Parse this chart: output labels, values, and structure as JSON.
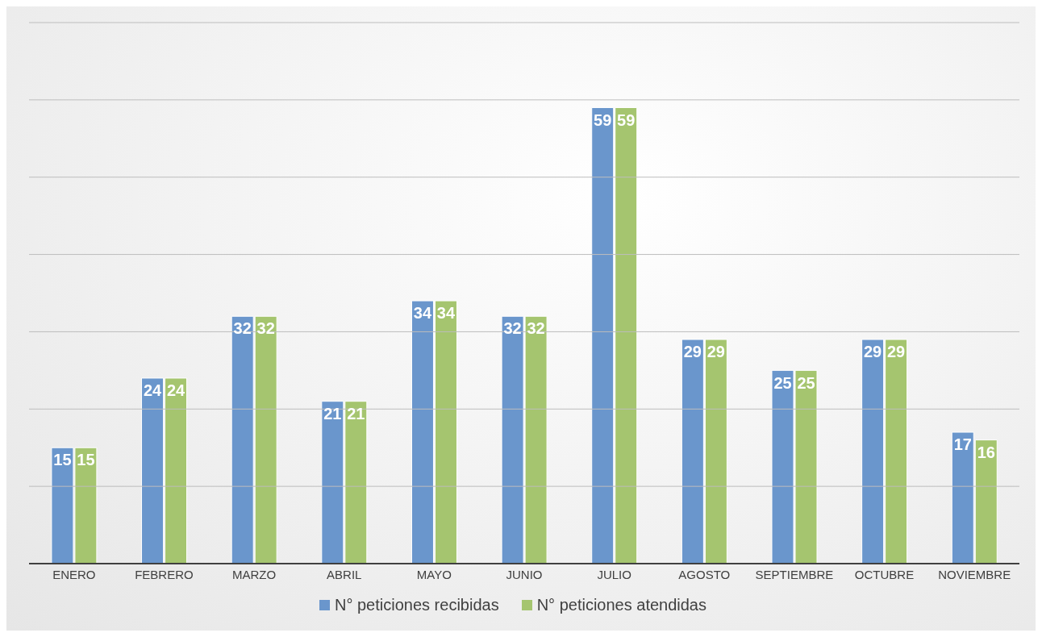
{
  "chart_data": {
    "type": "bar",
    "categories": [
      "ENERO",
      "FEBRERO",
      "MARZO",
      "ABRIL",
      "MAYO",
      "JUNIO",
      "JULIO",
      "AGOSTO",
      "SEPTIEMBRE",
      "OCTUBRE",
      "NOVIEMBRE"
    ],
    "series": [
      {
        "name": "N° peticiones recibidas",
        "color": "#6a96cc",
        "values": [
          15,
          24,
          32,
          21,
          34,
          32,
          59,
          29,
          25,
          29,
          17
        ]
      },
      {
        "name": "N° peticiones atendidas",
        "color": "#a5c56f",
        "values": [
          15,
          24,
          32,
          21,
          34,
          32,
          59,
          29,
          25,
          29,
          16
        ]
      }
    ],
    "ylim": [
      0,
      70
    ],
    "yticks": [
      {
        "value": 0,
        "label": null
      },
      {
        "value": 10,
        "label": null
      },
      {
        "value": 20,
        "label": null
      },
      {
        "value": 30,
        "label": null
      },
      {
        "value": 40,
        "label": null
      },
      {
        "value": 50,
        "label": null
      },
      {
        "value": 60,
        "label": null
      },
      {
        "value": 70,
        "label": null
      }
    ],
    "tick_labels": "x",
    "grid": "y",
    "legend": "bottom",
    "data_labels": true
  }
}
